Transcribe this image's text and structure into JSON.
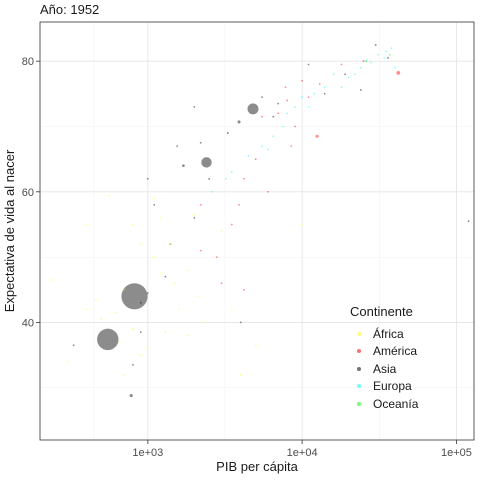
{
  "title": "Año: 1952",
  "chart_data": {
    "type": "scatter",
    "xscale": "log",
    "xlabel": "PIB per cápita",
    "ylabel": "Expectativa de vida al nacer",
    "xlim": [
      200,
      130000
    ],
    "ylim": [
      22,
      86
    ],
    "x_ticks": [
      1000,
      10000,
      100000
    ],
    "x_tick_labels": [
      "1e+03",
      "1e+04",
      "1e+05"
    ],
    "y_ticks": [
      40,
      60,
      80
    ],
    "y_tick_labels": [
      "40",
      "60",
      "80"
    ],
    "grid": true,
    "legend_position": "bottom-right",
    "legend": {
      "title": "Continente",
      "entries": [
        "África",
        "América",
        "Asia",
        "Europa",
        "Oceanía"
      ]
    },
    "colors": {
      "África": "#ffff00",
      "América": "#ff0000",
      "Asia": "#000000",
      "Europa": "#00ffff",
      "Oceanía": "#00ff00"
    },
    "series": [
      {
        "name": "Asia",
        "points": [
          {
            "x": 820,
            "y": 44.0,
            "pop": 556
          },
          {
            "x": 550,
            "y": 37.4,
            "pop": 372
          },
          {
            "x": 2400,
            "y": 64.5,
            "pop": 86
          },
          {
            "x": 4800,
            "y": 72.7,
            "pop": 96
          },
          {
            "x": 780,
            "y": 28.8,
            "pop": 8
          },
          {
            "x": 1700,
            "y": 64.0,
            "pop": 6
          },
          {
            "x": 3900,
            "y": 70.7,
            "pop": 8
          },
          {
            "x": 30000,
            "y": 82.5,
            "pop": 3
          },
          {
            "x": 36000,
            "y": 80.5,
            "pop": 3
          },
          {
            "x": 24000,
            "y": 75.6,
            "pop": 3
          },
          {
            "x": 11000,
            "y": 79.5,
            "pop": 2
          },
          {
            "x": 6500,
            "y": 71.5,
            "pop": 3
          },
          {
            "x": 3300,
            "y": 69.0,
            "pop": 3
          },
          {
            "x": 2500,
            "y": 62.0,
            "pop": 3
          },
          {
            "x": 1100,
            "y": 58.0,
            "pop": 2
          },
          {
            "x": 1300,
            "y": 47.0,
            "pop": 2
          },
          {
            "x": 1000,
            "y": 44.5,
            "pop": 2
          },
          {
            "x": 330,
            "y": 36.5,
            "pop": 1.2
          },
          {
            "x": 900,
            "y": 43.0,
            "pop": 1.5
          },
          {
            "x": 1550,
            "y": 67.0,
            "pop": 1
          },
          {
            "x": 4000,
            "y": 40.0,
            "pop": 1
          },
          {
            "x": 1400,
            "y": 52.0,
            "pop": 1
          },
          {
            "x": 2000,
            "y": 56.0,
            "pop": 1
          },
          {
            "x": 800,
            "y": 33.5,
            "pop": 1
          },
          {
            "x": 900,
            "y": 38.5,
            "pop": 1
          },
          {
            "x": 2200,
            "y": 67.5,
            "pop": 1
          },
          {
            "x": 19000,
            "y": 78.0,
            "pop": 0.8
          },
          {
            "x": 14000,
            "y": 75.0,
            "pop": 0.8
          },
          {
            "x": 7000,
            "y": 73.5,
            "pop": 0.8
          },
          {
            "x": 5500,
            "y": 74.5,
            "pop": 0.8
          },
          {
            "x": 2000,
            "y": 73.0,
            "pop": 0.8
          },
          {
            "x": 1000,
            "y": 62.0,
            "pop": 0.6
          },
          {
            "x": 120000,
            "y": 55.5,
            "pop": 0.3
          }
        ]
      },
      {
        "name": "América",
        "points": [
          {
            "x": 42000,
            "y": 78.2,
            "pop": 12
          },
          {
            "x": 12500,
            "y": 68.5,
            "pop": 8
          },
          {
            "x": 8000,
            "y": 74.0,
            "pop": 3
          },
          {
            "x": 10000,
            "y": 77.0,
            "pop": 2
          },
          {
            "x": 5500,
            "y": 71.5,
            "pop": 2
          },
          {
            "x": 2200,
            "y": 51.0,
            "pop": 2
          },
          {
            "x": 2800,
            "y": 50.0,
            "pop": 1
          },
          {
            "x": 4200,
            "y": 62.0,
            "pop": 1
          },
          {
            "x": 7800,
            "y": 76.0,
            "pop": 1
          },
          {
            "x": 3500,
            "y": 55.0,
            "pop": 1
          },
          {
            "x": 18000,
            "y": 79.5,
            "pop": 1
          },
          {
            "x": 8500,
            "y": 67.0,
            "pop": 1
          },
          {
            "x": 5000,
            "y": 65.0,
            "pop": 0.8
          },
          {
            "x": 6000,
            "y": 60.0,
            "pop": 0.8
          },
          {
            "x": 3000,
            "y": 46.0,
            "pop": 0.8
          },
          {
            "x": 2200,
            "y": 58.0,
            "pop": 0.8
          },
          {
            "x": 7000,
            "y": 72.0,
            "pop": 0.8
          },
          {
            "x": 11000,
            "y": 74.5,
            "pop": 0.8
          },
          {
            "x": 13000,
            "y": 76.5,
            "pop": 0.8
          },
          {
            "x": 4200,
            "y": 45.0,
            "pop": 0.8
          },
          {
            "x": 9000,
            "y": 70.0,
            "pop": 0.8
          },
          {
            "x": 25000,
            "y": 80.0,
            "pop": 0.8
          },
          {
            "x": 3900,
            "y": 58.0,
            "pop": 0.6
          }
        ]
      },
      {
        "name": "Europa",
        "points": [
          {
            "x": 34000,
            "y": 80.5,
            "pop": 2
          },
          {
            "x": 28000,
            "y": 79.8,
            "pop": 2
          },
          {
            "x": 26000,
            "y": 80.1,
            "pop": 2
          },
          {
            "x": 31000,
            "y": 81.0,
            "pop": 2
          },
          {
            "x": 24000,
            "y": 79.0,
            "pop": 2
          },
          {
            "x": 22000,
            "y": 78.0,
            "pop": 2
          },
          {
            "x": 35000,
            "y": 81.5,
            "pop": 2
          },
          {
            "x": 38000,
            "y": 82.0,
            "pop": 2
          },
          {
            "x": 20000,
            "y": 77.5,
            "pop": 2
          },
          {
            "x": 18000,
            "y": 76.0,
            "pop": 2
          },
          {
            "x": 9000,
            "y": 73.0,
            "pop": 2
          },
          {
            "x": 7500,
            "y": 70.0,
            "pop": 2
          },
          {
            "x": 6500,
            "y": 68.5,
            "pop": 2
          },
          {
            "x": 5500,
            "y": 67.0,
            "pop": 2
          },
          {
            "x": 4500,
            "y": 65.5,
            "pop": 2
          },
          {
            "x": 3500,
            "y": 63.0,
            "pop": 2
          },
          {
            "x": 3200,
            "y": 62.0,
            "pop": 2
          },
          {
            "x": 14000,
            "y": 76.0,
            "pop": 2
          },
          {
            "x": 12000,
            "y": 75.0,
            "pop": 2
          },
          {
            "x": 11000,
            "y": 73.0,
            "pop": 2
          },
          {
            "x": 16000,
            "y": 78.0,
            "pop": 2
          },
          {
            "x": 8000,
            "y": 72.0,
            "pop": 2
          },
          {
            "x": 10000,
            "y": 74.5,
            "pop": 2
          },
          {
            "x": 6000,
            "y": 66.5,
            "pop": 2
          },
          {
            "x": 2600,
            "y": 60.0,
            "pop": 2
          },
          {
            "x": 40000,
            "y": 79.0,
            "pop": 2
          }
        ]
      },
      {
        "name": "Oceanía",
        "points": [
          {
            "x": 37000,
            "y": 81.0,
            "pop": 2
          },
          {
            "x": 26000,
            "y": 80.0,
            "pop": 1
          }
        ]
      },
      {
        "name": "África",
        "points": [
          {
            "x": 240,
            "y": 46.5,
            "pop": 2
          },
          {
            "x": 400,
            "y": 42.0,
            "pop": 2
          },
          {
            "x": 500,
            "y": 40.5,
            "pop": 2
          },
          {
            "x": 620,
            "y": 41.5,
            "pop": 2
          },
          {
            "x": 700,
            "y": 45.0,
            "pop": 2
          },
          {
            "x": 800,
            "y": 55.0,
            "pop": 2
          },
          {
            "x": 900,
            "y": 52.0,
            "pop": 2
          },
          {
            "x": 1100,
            "y": 50.0,
            "pop": 2
          },
          {
            "x": 1200,
            "y": 47.5,
            "pop": 2
          },
          {
            "x": 1500,
            "y": 46.0,
            "pop": 2
          },
          {
            "x": 1800,
            "y": 48.0,
            "pop": 2
          },
          {
            "x": 3000,
            "y": 54.0,
            "pop": 2
          },
          {
            "x": 560,
            "y": 59.5,
            "pop": 2
          },
          {
            "x": 400,
            "y": 55.0,
            "pop": 2
          },
          {
            "x": 900,
            "y": 35.0,
            "pop": 2
          },
          {
            "x": 1000,
            "y": 36.0,
            "pop": 2
          },
          {
            "x": 300,
            "y": 34.0,
            "pop": 2
          },
          {
            "x": 700,
            "y": 32.0,
            "pop": 2
          },
          {
            "x": 1300,
            "y": 38.5,
            "pop": 2
          },
          {
            "x": 1600,
            "y": 42.0,
            "pop": 2
          },
          {
            "x": 2100,
            "y": 44.0,
            "pop": 2
          },
          {
            "x": 3500,
            "y": 42.0,
            "pop": 2
          },
          {
            "x": 4000,
            "y": 32.0,
            "pop": 2
          },
          {
            "x": 2000,
            "y": 56.5,
            "pop": 2
          },
          {
            "x": 1400,
            "y": 52.0,
            "pop": 2
          },
          {
            "x": 1100,
            "y": 59.0,
            "pop": 2
          },
          {
            "x": 800,
            "y": 39.0,
            "pop": 2
          },
          {
            "x": 650,
            "y": 37.0,
            "pop": 2
          },
          {
            "x": 1800,
            "y": 38.0,
            "pop": 2
          },
          {
            "x": 2300,
            "y": 40.0,
            "pop": 2
          },
          {
            "x": 10000,
            "y": 55.0,
            "pop": 2
          },
          {
            "x": 460,
            "y": 43.5,
            "pop": 2
          },
          {
            "x": 1200,
            "y": 56.0,
            "pop": 2
          },
          {
            "x": 5000,
            "y": 36.5,
            "pop": 2
          }
        ]
      }
    ]
  }
}
